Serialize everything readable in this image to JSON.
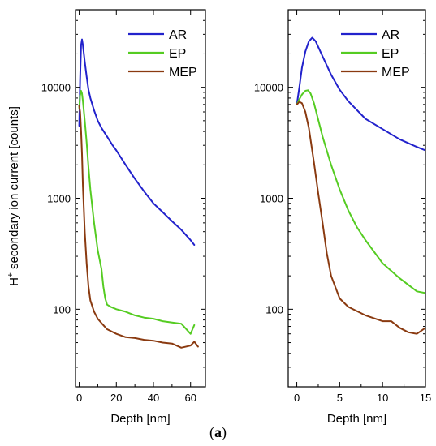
{
  "caption": {
    "open": "(",
    "letter": "a",
    "close": ")"
  },
  "ylabel": {
    "prefix": "H",
    "superscript": "+",
    "rest": " secondary ion current [counts]"
  },
  "chart_data": [
    {
      "type": "line",
      "xlabel": "Depth [nm]",
      "ylabel": "H+ secondary ion current [counts]",
      "xlim": [
        -2,
        68
      ],
      "ylim": [
        20,
        50000
      ],
      "yscale": "log",
      "xticks": [
        0,
        20,
        40,
        60
      ],
      "yticks": [
        100,
        1000,
        10000
      ],
      "ytick_labels": [
        "100",
        "1000",
        "10000"
      ],
      "legend_position": "top-right",
      "series": [
        {
          "name": "AR",
          "color": "#2222cc",
          "x": [
            0,
            0.5,
            1,
            1.5,
            2,
            3,
            4,
            5,
            6,
            8,
            10,
            12,
            15,
            18,
            20,
            25,
            30,
            35,
            40,
            45,
            50,
            55,
            60,
            62
          ],
          "y": [
            4500,
            12000,
            24000,
            27000,
            24000,
            17000,
            12500,
            9500,
            8000,
            6200,
            5000,
            4300,
            3600,
            3000,
            2700,
            2000,
            1500,
            1150,
            900,
            750,
            620,
            520,
            420,
            380
          ]
        },
        {
          "name": "EP",
          "color": "#55cc22",
          "x": [
            0,
            0.5,
            1,
            1.5,
            2,
            3,
            4,
            5,
            6,
            8,
            10,
            12,
            13,
            14,
            15,
            17,
            20,
            25,
            30,
            35,
            40,
            45,
            50,
            55,
            60,
            62
          ],
          "y": [
            6500,
            8500,
            9300,
            8800,
            7500,
            5000,
            3200,
            1900,
            1200,
            600,
            340,
            230,
            160,
            125,
            110,
            105,
            100,
            95,
            88,
            84,
            82,
            78,
            76,
            74,
            60,
            72
          ]
        },
        {
          "name": "MEP",
          "color": "#8a3a10",
          "x": [
            0,
            0.5,
            1,
            1.5,
            2,
            3,
            4,
            5,
            6,
            8,
            10,
            12,
            15,
            20,
            25,
            30,
            35,
            40,
            45,
            50,
            55,
            60,
            62,
            64
          ],
          "y": [
            6800,
            6000,
            4000,
            2500,
            1300,
            500,
            260,
            160,
            120,
            95,
            82,
            75,
            66,
            60,
            56,
            55,
            53,
            52,
            50,
            49,
            45,
            47,
            51,
            46
          ]
        }
      ]
    },
    {
      "type": "line",
      "xlabel": "Depth [nm]",
      "ylabel": "",
      "xlim": [
        -1,
        15
      ],
      "ylim": [
        20,
        50000
      ],
      "yscale": "log",
      "xticks": [
        0,
        5,
        10,
        15
      ],
      "yticks": [
        100,
        1000,
        10000
      ],
      "ytick_labels": [
        "100",
        "1000",
        "10000"
      ],
      "legend_position": "top-right",
      "series": [
        {
          "name": "AR",
          "color": "#2222cc",
          "x": [
            0,
            0.3,
            0.6,
            1,
            1.4,
            1.8,
            2.2,
            3,
            4,
            5,
            6,
            8,
            10,
            12,
            14,
            15
          ],
          "y": [
            7000,
            10000,
            15000,
            21000,
            26000,
            28000,
            26000,
            19000,
            13000,
            9500,
            7500,
            5200,
            4200,
            3400,
            2900,
            2700
          ]
        },
        {
          "name": "EP",
          "color": "#55cc22",
          "x": [
            0,
            0.3,
            0.6,
            1,
            1.3,
            1.6,
            2,
            3,
            4,
            5,
            6,
            7,
            8,
            10,
            12,
            14,
            15
          ],
          "y": [
            7000,
            7800,
            8600,
            9300,
            9400,
            8800,
            7200,
            3600,
            2000,
            1200,
            780,
            550,
            420,
            260,
            190,
            145,
            140
          ]
        },
        {
          "name": "MEP",
          "color": "#8a3a10",
          "x": [
            0,
            0.3,
            0.6,
            1,
            1.4,
            2,
            2.5,
            3,
            3.5,
            4,
            5,
            6,
            8,
            10,
            11,
            12,
            13,
            14,
            15
          ],
          "y": [
            7000,
            7400,
            7200,
            6000,
            4300,
            2100,
            1100,
            600,
            320,
            200,
            125,
            105,
            88,
            78,
            78,
            68,
            62,
            60,
            68
          ]
        }
      ]
    }
  ]
}
